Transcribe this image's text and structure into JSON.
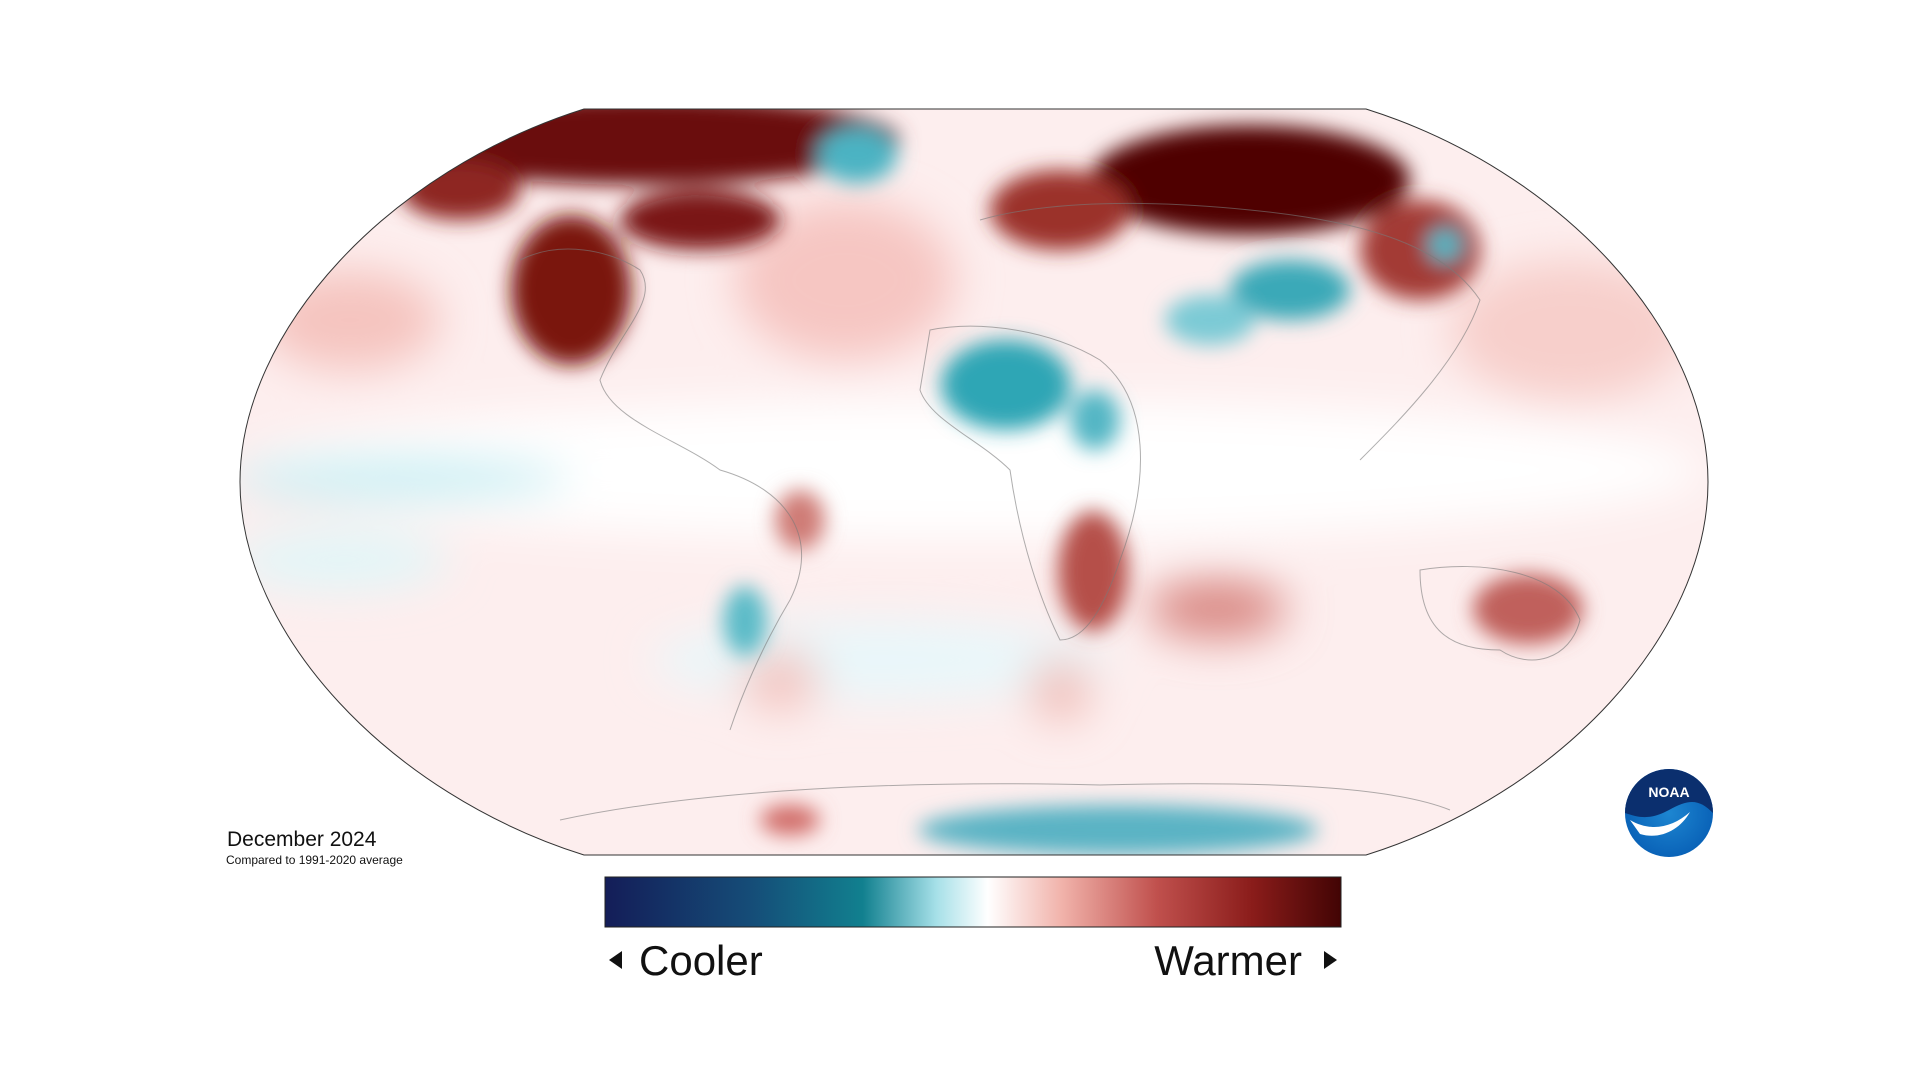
{
  "caption": {
    "title": "December 2024",
    "subtitle": "Compared to 1991-2020 average"
  },
  "legend": {
    "low": "Cooler",
    "high": "Warmer"
  },
  "logo": {
    "text": "NOAA"
  }
}
